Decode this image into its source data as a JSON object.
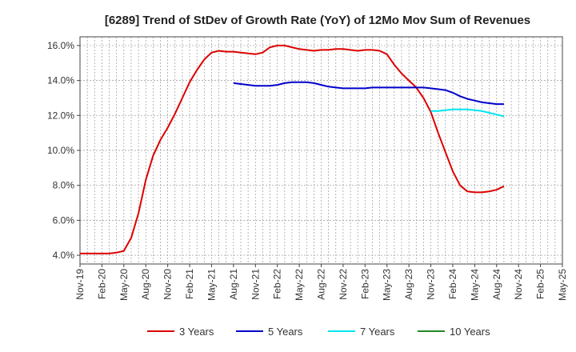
{
  "chart_data": {
    "type": "line",
    "title": "[6289]  Trend of StDev of Growth Rate (YoY) of 12Mo Mov Sum of Revenues",
    "xlabel": "",
    "ylabel": "",
    "ylim": [
      3.5,
      16.5
    ],
    "y_ticks": [
      4,
      6,
      8,
      10,
      12,
      14,
      16
    ],
    "y_tick_labels": [
      "4.0%",
      "6.0%",
      "8.0%",
      "10.0%",
      "12.0%",
      "14.0%",
      "16.0%"
    ],
    "x_tick_labels": [
      "Nov-19",
      "Feb-20",
      "May-20",
      "Aug-20",
      "Nov-20",
      "Feb-21",
      "May-21",
      "Aug-21",
      "Nov-21",
      "Feb-22",
      "May-22",
      "Aug-22",
      "Nov-22",
      "Feb-23",
      "May-23",
      "Aug-23",
      "Nov-23",
      "Feb-24",
      "May-24",
      "Aug-24",
      "Nov-24",
      "Feb-25",
      "May-25"
    ],
    "grid": true,
    "legend_position": "bottom",
    "series": [
      {
        "name": "3 Years",
        "color": "#dd0000",
        "start_index": 0,
        "values": [
          4.1,
          4.1,
          4.1,
          4.1,
          4.1,
          4.15,
          4.25,
          5.0,
          6.4,
          8.3,
          9.7,
          10.6,
          11.3,
          12.1,
          13.0,
          13.9,
          14.6,
          15.2,
          15.6,
          15.7,
          15.65,
          15.65,
          15.6,
          15.55,
          15.5,
          15.6,
          15.9,
          16.0,
          16.0,
          15.9,
          15.8,
          15.75,
          15.7,
          15.75,
          15.75,
          15.8,
          15.8,
          15.75,
          15.7,
          15.75,
          15.75,
          15.7,
          15.5,
          14.9,
          14.4,
          14.0,
          13.6,
          13.0,
          12.2,
          11.0,
          9.9,
          8.8,
          8.0,
          7.65,
          7.6,
          7.6,
          7.65,
          7.75,
          7.95
        ]
      },
      {
        "name": "5 Years",
        "color": "#0000cc",
        "start_index": 21,
        "values": [
          13.85,
          13.8,
          13.75,
          13.7,
          13.7,
          13.7,
          13.75,
          13.85,
          13.9,
          13.9,
          13.9,
          13.85,
          13.75,
          13.65,
          13.6,
          13.55,
          13.55,
          13.55,
          13.55,
          13.6,
          13.6,
          13.6,
          13.6,
          13.6,
          13.6,
          13.6,
          13.6,
          13.55,
          13.5,
          13.45,
          13.3,
          13.1,
          12.95,
          12.85,
          12.75,
          12.7,
          12.65,
          12.65
        ]
      },
      {
        "name": "7 Years",
        "color": "#00e5ee",
        "start_index": 48,
        "values": [
          12.25,
          12.25,
          12.3,
          12.35,
          12.35,
          12.35,
          12.3,
          12.25,
          12.15,
          12.05,
          11.95
        ]
      },
      {
        "name": "10 Years",
        "color": "#228822",
        "start_index": 0,
        "values": []
      }
    ]
  }
}
